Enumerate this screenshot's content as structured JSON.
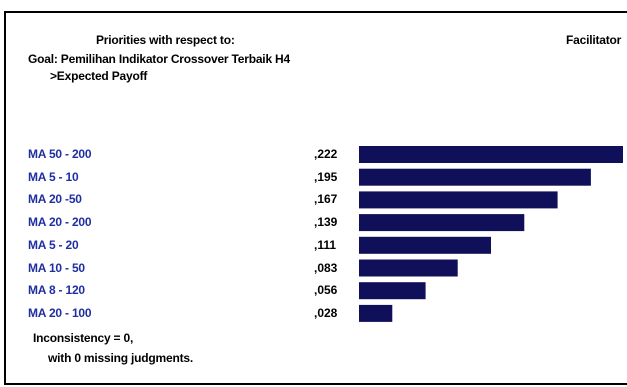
{
  "header": {
    "priorities_title": "Priorities with respect to:",
    "goal_line": "Goal: Pemilihan Indikator Crossover Terbaik H4",
    "criterion_line": ">Expected Payoff",
    "facilitator": "Facilitator"
  },
  "chart_data": {
    "type": "bar",
    "orientation": "horizontal",
    "categories": [
      "MA 50 - 200",
      "MA 5 - 10",
      "MA 20 -50",
      "MA 20 - 200",
      "MA 5 - 20",
      "MA 10 - 50",
      "MA 8 - 120",
      "MA 20 - 100"
    ],
    "values": [
      0.222,
      0.195,
      0.167,
      0.139,
      0.111,
      0.083,
      0.056,
      0.028
    ],
    "value_labels": [
      ",222",
      ",195",
      ",167",
      ",139",
      ",111",
      ",083",
      ",056",
      ",028"
    ],
    "xlim": [
      0,
      0.222
    ],
    "bar_color": "#10105a",
    "label_color": "#1f2fa0"
  },
  "footer": {
    "inconsistency": "Inconsistency = 0,",
    "missing": "with 0  missing judgments."
  }
}
